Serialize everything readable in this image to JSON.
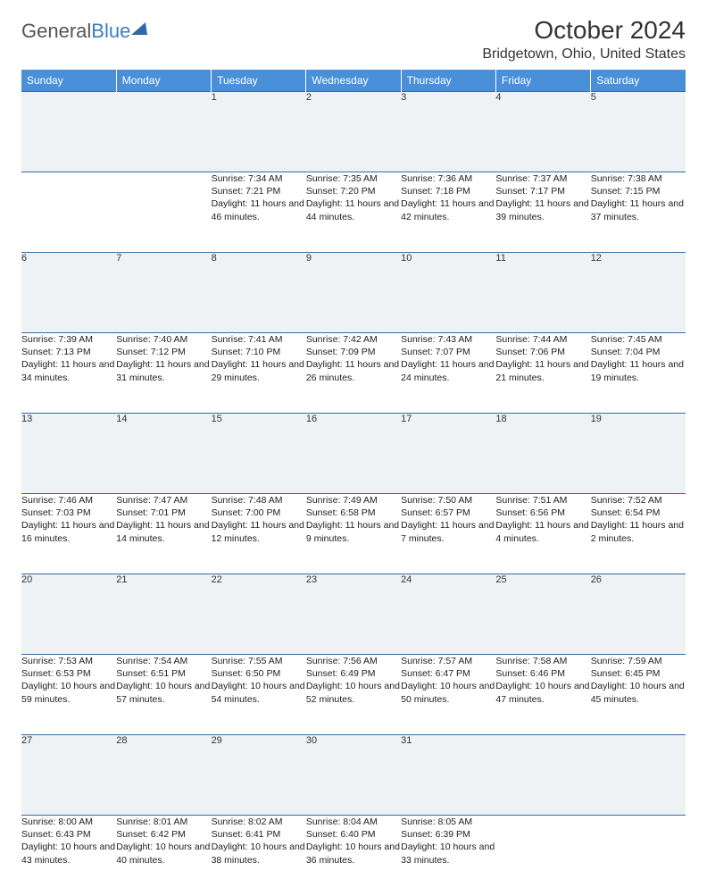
{
  "logo": {
    "part1": "General",
    "part2": "Blue"
  },
  "header": {
    "month_title": "October 2024",
    "location": "Bridgetown, Ohio, United States"
  },
  "colors": {
    "header_bg": "#4a90d9",
    "header_text": "#ffffff",
    "daynum_bg": "#eef2f5",
    "row_border": "#3a6a9e",
    "text": "#222222",
    "logo_gray": "#555555",
    "logo_blue": "#3a7ebf"
  },
  "day_headers": [
    "Sunday",
    "Monday",
    "Tuesday",
    "Wednesday",
    "Thursday",
    "Friday",
    "Saturday"
  ],
  "weeks": [
    [
      null,
      null,
      {
        "n": "1",
        "sr": "7:34 AM",
        "ss": "7:21 PM",
        "d": "11 hours and 46 minutes."
      },
      {
        "n": "2",
        "sr": "7:35 AM",
        "ss": "7:20 PM",
        "d": "11 hours and 44 minutes."
      },
      {
        "n": "3",
        "sr": "7:36 AM",
        "ss": "7:18 PM",
        "d": "11 hours and 42 minutes."
      },
      {
        "n": "4",
        "sr": "7:37 AM",
        "ss": "7:17 PM",
        "d": "11 hours and 39 minutes."
      },
      {
        "n": "5",
        "sr": "7:38 AM",
        "ss": "7:15 PM",
        "d": "11 hours and 37 minutes."
      }
    ],
    [
      {
        "n": "6",
        "sr": "7:39 AM",
        "ss": "7:13 PM",
        "d": "11 hours and 34 minutes."
      },
      {
        "n": "7",
        "sr": "7:40 AM",
        "ss": "7:12 PM",
        "d": "11 hours and 31 minutes."
      },
      {
        "n": "8",
        "sr": "7:41 AM",
        "ss": "7:10 PM",
        "d": "11 hours and 29 minutes."
      },
      {
        "n": "9",
        "sr": "7:42 AM",
        "ss": "7:09 PM",
        "d": "11 hours and 26 minutes."
      },
      {
        "n": "10",
        "sr": "7:43 AM",
        "ss": "7:07 PM",
        "d": "11 hours and 24 minutes."
      },
      {
        "n": "11",
        "sr": "7:44 AM",
        "ss": "7:06 PM",
        "d": "11 hours and 21 minutes."
      },
      {
        "n": "12",
        "sr": "7:45 AM",
        "ss": "7:04 PM",
        "d": "11 hours and 19 minutes."
      }
    ],
    [
      {
        "n": "13",
        "sr": "7:46 AM",
        "ss": "7:03 PM",
        "d": "11 hours and 16 minutes."
      },
      {
        "n": "14",
        "sr": "7:47 AM",
        "ss": "7:01 PM",
        "d": "11 hours and 14 minutes."
      },
      {
        "n": "15",
        "sr": "7:48 AM",
        "ss": "7:00 PM",
        "d": "11 hours and 12 minutes."
      },
      {
        "n": "16",
        "sr": "7:49 AM",
        "ss": "6:58 PM",
        "d": "11 hours and 9 minutes."
      },
      {
        "n": "17",
        "sr": "7:50 AM",
        "ss": "6:57 PM",
        "d": "11 hours and 7 minutes."
      },
      {
        "n": "18",
        "sr": "7:51 AM",
        "ss": "6:56 PM",
        "d": "11 hours and 4 minutes."
      },
      {
        "n": "19",
        "sr": "7:52 AM",
        "ss": "6:54 PM",
        "d": "11 hours and 2 minutes."
      }
    ],
    [
      {
        "n": "20",
        "sr": "7:53 AM",
        "ss": "6:53 PM",
        "d": "10 hours and 59 minutes."
      },
      {
        "n": "21",
        "sr": "7:54 AM",
        "ss": "6:51 PM",
        "d": "10 hours and 57 minutes."
      },
      {
        "n": "22",
        "sr": "7:55 AM",
        "ss": "6:50 PM",
        "d": "10 hours and 54 minutes."
      },
      {
        "n": "23",
        "sr": "7:56 AM",
        "ss": "6:49 PM",
        "d": "10 hours and 52 minutes."
      },
      {
        "n": "24",
        "sr": "7:57 AM",
        "ss": "6:47 PM",
        "d": "10 hours and 50 minutes."
      },
      {
        "n": "25",
        "sr": "7:58 AM",
        "ss": "6:46 PM",
        "d": "10 hours and 47 minutes."
      },
      {
        "n": "26",
        "sr": "7:59 AM",
        "ss": "6:45 PM",
        "d": "10 hours and 45 minutes."
      }
    ],
    [
      {
        "n": "27",
        "sr": "8:00 AM",
        "ss": "6:43 PM",
        "d": "10 hours and 43 minutes."
      },
      {
        "n": "28",
        "sr": "8:01 AM",
        "ss": "6:42 PM",
        "d": "10 hours and 40 minutes."
      },
      {
        "n": "29",
        "sr": "8:02 AM",
        "ss": "6:41 PM",
        "d": "10 hours and 38 minutes."
      },
      {
        "n": "30",
        "sr": "8:04 AM",
        "ss": "6:40 PM",
        "d": "10 hours and 36 minutes."
      },
      {
        "n": "31",
        "sr": "8:05 AM",
        "ss": "6:39 PM",
        "d": "10 hours and 33 minutes."
      },
      null,
      null
    ]
  ],
  "labels": {
    "sunrise": "Sunrise:",
    "sunset": "Sunset:",
    "daylight": "Daylight:"
  }
}
